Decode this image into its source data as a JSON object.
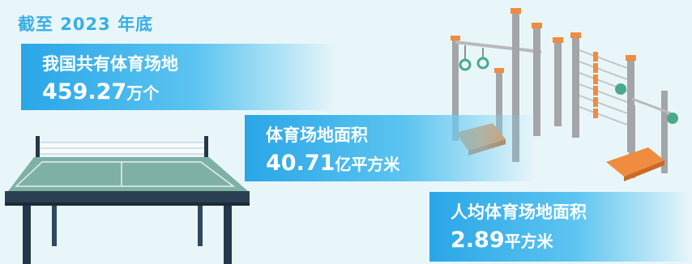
{
  "headline": "截至 2023 年底",
  "stats": [
    {
      "label": "我国共有体育场地",
      "number": "459.27",
      "unit": "万个"
    },
    {
      "label": "体育场地面积",
      "number": "40.71",
      "unit": "亿平方米"
    },
    {
      "label": "人均体育场地面积",
      "number": "2.89",
      "unit": "平方米"
    }
  ],
  "colors": {
    "accent_blue": "#2aa6e8",
    "background": "#e9f6f9",
    "table_green": "#7fb0a6",
    "equipment_gray": "#a3a5a8",
    "bench_orange": "#ef8c3f"
  }
}
